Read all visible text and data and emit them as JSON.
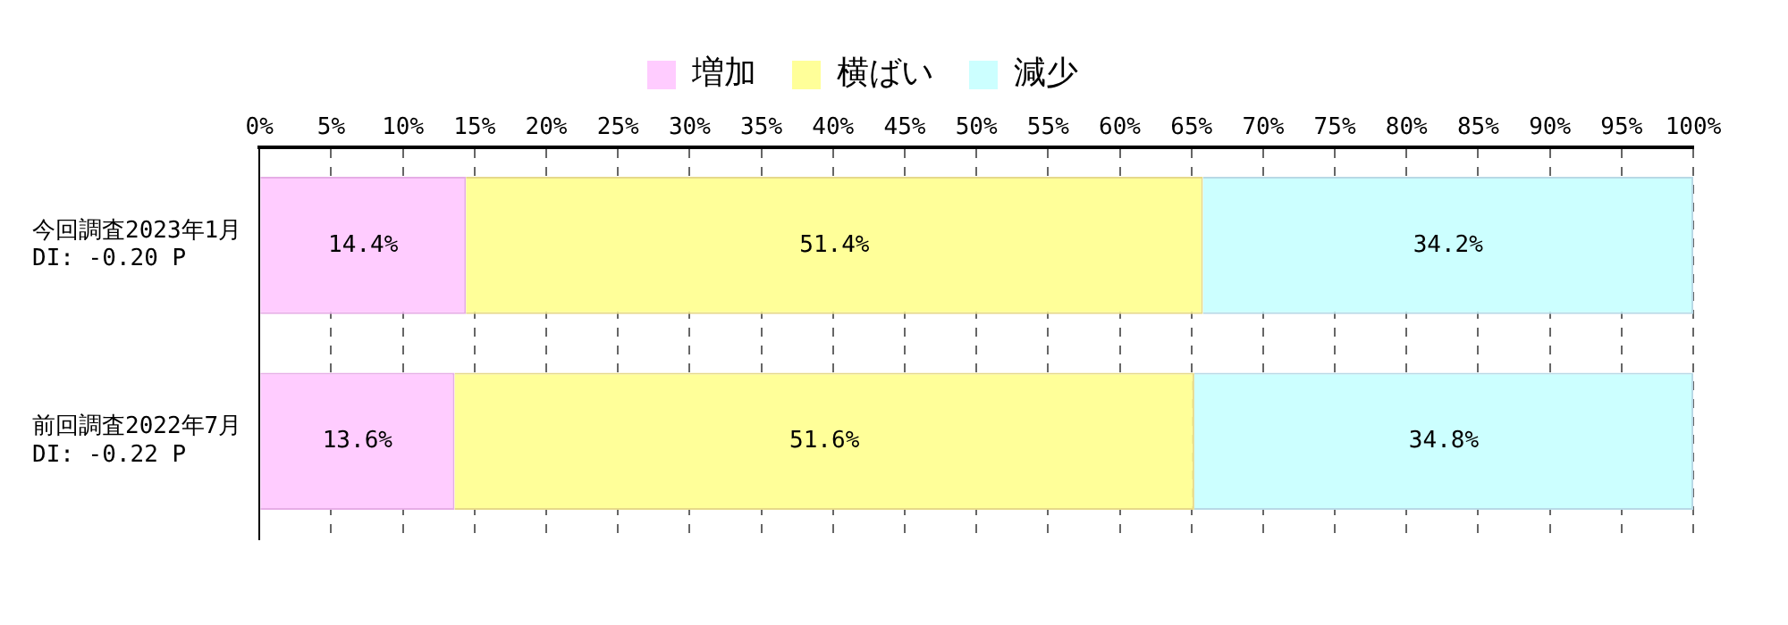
{
  "chart_data": {
    "type": "bar",
    "orientation": "horizontal",
    "stacked": true,
    "categories": [
      "今回調査2023年1月\nDI: -0.20 P",
      "前回調査2022年7月\nDI: -0.22 P"
    ],
    "series": [
      {
        "name": "増加",
        "color": "#ffccff",
        "values": [
          14.4,
          13.6
        ],
        "value_labels": [
          "14.4%",
          "13.6%"
        ]
      },
      {
        "name": "横ばい",
        "color": "#ffff99",
        "values": [
          51.4,
          51.6
        ],
        "value_labels": [
          "51.4%",
          "51.6%"
        ]
      },
      {
        "name": "減少",
        "color": "#ccffff",
        "values": [
          34.2,
          34.8
        ],
        "value_labels": [
          "34.2%",
          "34.8%"
        ]
      }
    ],
    "xlim": [
      0,
      100
    ],
    "xticks": [
      {
        "value": 0,
        "label": "0%"
      },
      {
        "value": 5,
        "label": "5%"
      },
      {
        "value": 10,
        "label": "10%"
      },
      {
        "value": 15,
        "label": "15%"
      },
      {
        "value": 20,
        "label": "20%"
      },
      {
        "value": 25,
        "label": "25%"
      },
      {
        "value": 30,
        "label": "30%"
      },
      {
        "value": 35,
        "label": "35%"
      },
      {
        "value": 40,
        "label": "40%"
      },
      {
        "value": 45,
        "label": "45%"
      },
      {
        "value": 50,
        "label": "50%"
      },
      {
        "value": 55,
        "label": "55%"
      },
      {
        "value": 60,
        "label": "60%"
      },
      {
        "value": 65,
        "label": "65%"
      },
      {
        "value": 70,
        "label": "70%"
      },
      {
        "value": 75,
        "label": "75%"
      },
      {
        "value": 80,
        "label": "80%"
      },
      {
        "value": 85,
        "label": "85%"
      },
      {
        "value": 90,
        "label": "90%"
      },
      {
        "value": 95,
        "label": "95%"
      },
      {
        "value": 100,
        "label": "100%"
      }
    ],
    "grid": "x",
    "legend": "top"
  }
}
